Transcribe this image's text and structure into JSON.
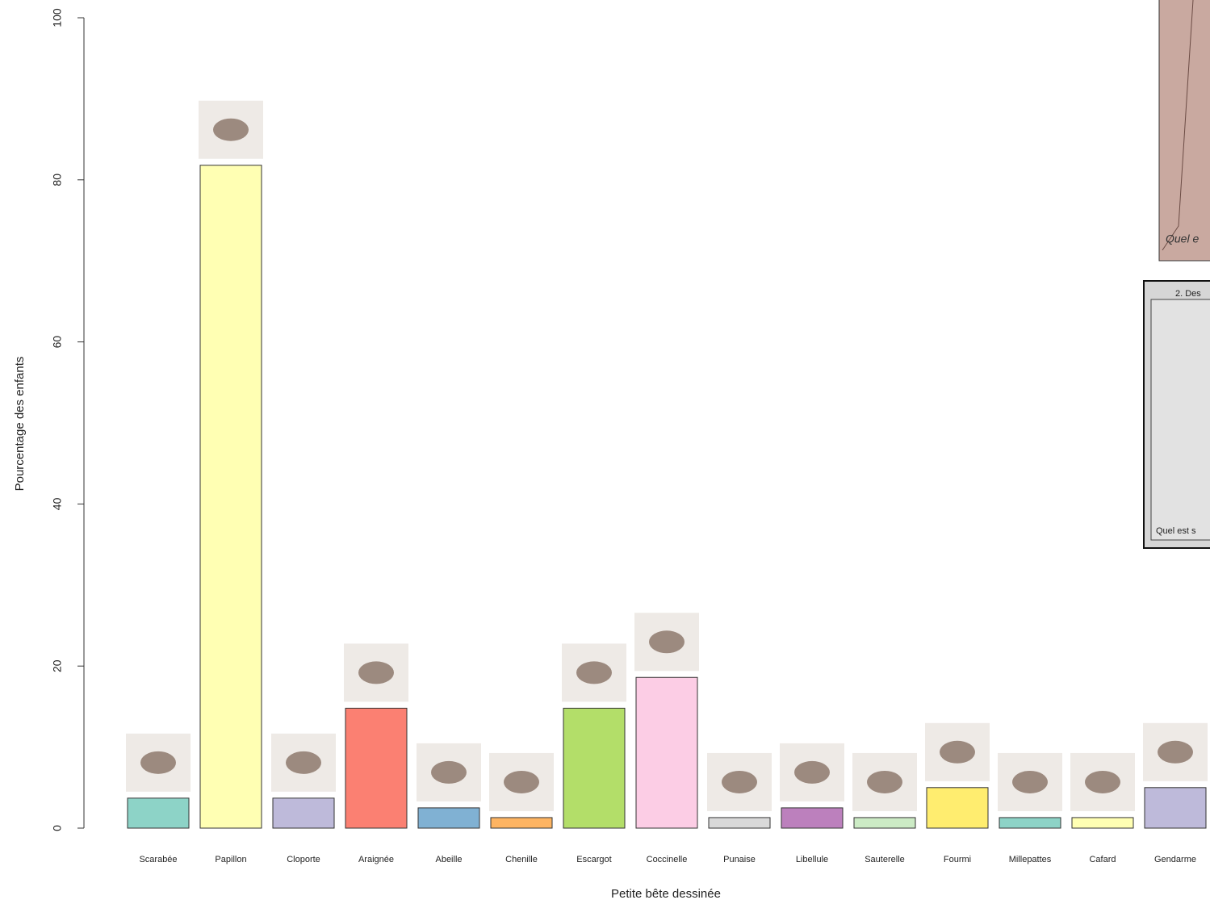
{
  "chart_data": {
    "type": "bar",
    "x_label": "Petite bête dessinée",
    "y_label": "Pourcentage des enfants",
    "categories": [
      "Scarabée",
      "Papillon",
      "Cloporte",
      "Araignée",
      "Abeille",
      "Chenille",
      "Escargot",
      "Coccinelle",
      "Punaise",
      "Libellule",
      "Sauterelle",
      "Fourmi",
      "Millepattes",
      "Cafard",
      "Gendarme"
    ],
    "values": [
      3.7,
      81.8,
      3.7,
      14.8,
      2.5,
      1.3,
      14.8,
      18.6,
      1.3,
      2.5,
      1.3,
      5.0,
      1.3,
      1.3,
      5.0
    ],
    "colors": [
      "#8dd3c7",
      "#ffffb3",
      "#bebada",
      "#fb8072",
      "#80b1d3",
      "#fdb462",
      "#b3de69",
      "#fccde5",
      "#d9d9d9",
      "#bc80bd",
      "#ccebc5",
      "#ffed6f",
      "#8dd3c7",
      "#ffffb3",
      "#bebada"
    ],
    "ylim": [
      0,
      100
    ],
    "yticks": [
      0,
      20,
      40,
      60,
      80,
      100
    ],
    "grid": false,
    "annotations": [
      "Quel e",
      "2. Des",
      "Quel est s"
    ]
  }
}
